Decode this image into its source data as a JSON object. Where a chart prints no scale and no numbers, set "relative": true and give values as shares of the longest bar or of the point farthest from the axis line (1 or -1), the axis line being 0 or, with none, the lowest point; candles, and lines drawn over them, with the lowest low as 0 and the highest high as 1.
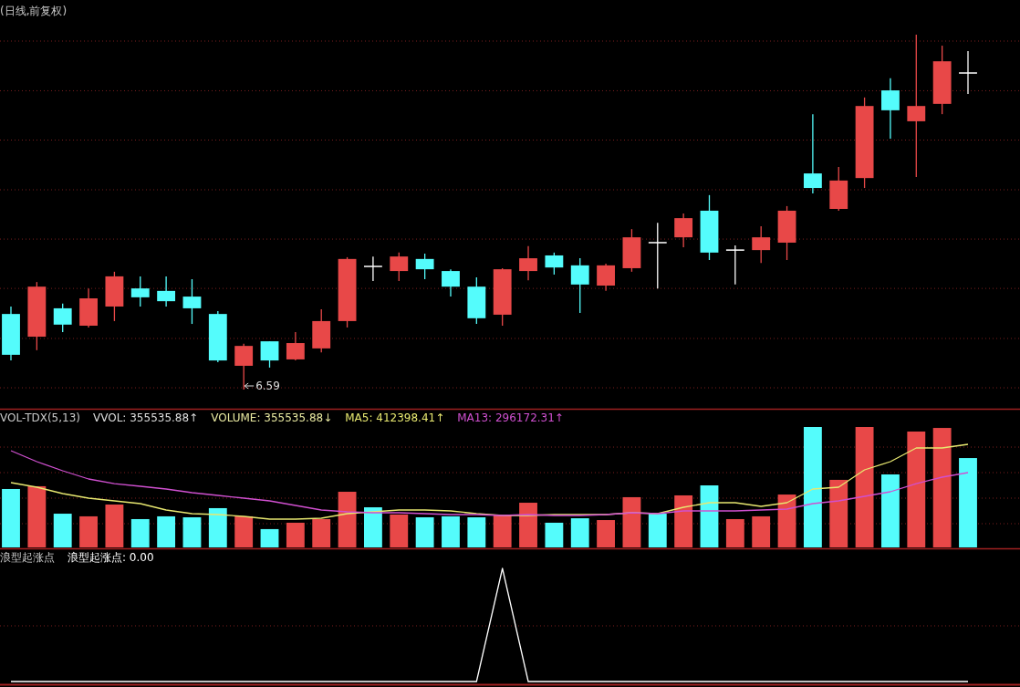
{
  "chart_data": [
    {
      "type": "candlestick",
      "title": "(日线,前复权)",
      "relative": true,
      "categories": [
        null,
        null,
        null,
        null,
        null,
        null,
        null,
        null,
        null,
        null,
        null,
        null,
        null,
        null,
        null,
        null,
        null,
        null,
        null,
        null,
        null,
        null,
        null,
        null,
        null,
        null,
        null,
        null,
        null,
        null,
        null,
        null,
        null,
        null,
        null,
        null,
        null,
        null
      ],
      "ohlc": [
        [
          0.213,
          0.234,
          0.082,
          0.098
        ],
        [
          0.149,
          0.303,
          0.111,
          0.29
        ],
        [
          0.229,
          0.242,
          0.162,
          0.183
        ],
        [
          0.18,
          0.285,
          0.175,
          0.257
        ],
        [
          0.234,
          0.332,
          0.193,
          0.319
        ],
        [
          0.285,
          0.319,
          0.234,
          0.26
        ],
        [
          0.278,
          0.319,
          0.234,
          0.249
        ],
        [
          0.262,
          0.311,
          0.185,
          0.229
        ],
        [
          0.213,
          0.221,
          0.077,
          0.082
        ],
        [
          0.067,
          0.129,
          0,
          0.123
        ],
        [
          0.136,
          0.136,
          0.062,
          0.082
        ],
        [
          0.085,
          0.162,
          0.082,
          0.131
        ],
        [
          0.116,
          0.226,
          0.105,
          0.193
        ],
        [
          0.193,
          0.373,
          0.175,
          0.368
        ],
        [
          0.347,
          0.375,
          0.306,
          0.347
        ],
        [
          0.334,
          0.386,
          0.306,
          0.375
        ],
        [
          0.368,
          0.383,
          0.311,
          0.339
        ],
        [
          0.334,
          0.339,
          0.262,
          0.29
        ],
        [
          0.29,
          0.316,
          0.185,
          0.201
        ],
        [
          0.211,
          0.342,
          0.18,
          0.339
        ],
        [
          0.334,
          0.404,
          0.308,
          0.37
        ],
        [
          0.378,
          0.386,
          0.324,
          0.344
        ],
        [
          0.35,
          0.37,
          0.216,
          0.296
        ],
        [
          0.293,
          0.355,
          0.278,
          0.35
        ],
        [
          0.342,
          0.452,
          0.332,
          0.429
        ],
        [
          0.414,
          0.47,
          0.285,
          0.414
        ],
        [
          0.429,
          0.496,
          0.401,
          0.483
        ],
        [
          0.504,
          0.548,
          0.365,
          0.386
        ],
        [
          0.393,
          0.406,
          0.296,
          0.393
        ],
        [
          0.393,
          0.46,
          0.357,
          0.429
        ],
        [
          0.414,
          0.517,
          0.365,
          0.504
        ],
        [
          0.609,
          0.776,
          0.553,
          0.568
        ],
        [
          0.509,
          0.627,
          0.504,
          0.589
        ],
        [
          0.596,
          0.823,
          0.568,
          0.799
        ],
        [
          0.843,
          0.877,
          0.707,
          0.787
        ],
        [
          0.756,
          1,
          0.599,
          0.799
        ],
        [
          0.805,
          0.969,
          0.776,
          0.925
        ],
        [
          0.892,
          0.954,
          0.833,
          0.892
        ]
      ],
      "colors": [
        "#54fcfc",
        "#e84848",
        "#54fcfc",
        "#e84848",
        "#e84848",
        "#54fcfc",
        "#54fcfc",
        "#54fcfc",
        "#54fcfc",
        "#e84848",
        "#54fcfc",
        "#e84848",
        "#e84848",
        "#e84848",
        "#ffffff",
        "#e84848",
        "#54fcfc",
        "#54fcfc",
        "#54fcfc",
        "#e84848",
        "#e84848",
        "#54fcfc",
        "#54fcfc",
        "#e84848",
        "#e84848",
        "#ffffff",
        "#e84848",
        "#54fcfc",
        "#ffffff",
        "#e84848",
        "#e84848",
        "#54fcfc",
        "#e84848",
        "#e84848",
        "#54fcfc",
        "#e84848",
        "#e84848",
        "#ffffff"
      ],
      "annotations": [
        "6.59"
      ],
      "ref_lines": [
        {
          "axis": "y",
          "value": 0.982,
          "color": "#7a1e1e",
          "line_style": "dotted"
        },
        {
          "axis": "y",
          "value": 0.842,
          "color": "#7a1e1e",
          "line_style": "dotted"
        },
        {
          "axis": "y",
          "value": 0.703,
          "color": "#7a1e1e",
          "line_style": "dotted"
        },
        {
          "axis": "y",
          "value": 0.563,
          "color": "#7a1e1e",
          "line_style": "dotted"
        },
        {
          "axis": "y",
          "value": 0.424,
          "color": "#7a1e1e",
          "line_style": "dotted"
        },
        {
          "axis": "y",
          "value": 0.285,
          "color": "#7a1e1e",
          "line_style": "dotted"
        },
        {
          "axis": "y",
          "value": 0.144,
          "color": "#7a1e1e",
          "line_style": "dotted"
        },
        {
          "axis": "y",
          "value": 0.005,
          "color": "#7a1e1e",
          "line_style": "dotted"
        }
      ]
    },
    {
      "type": "bar",
      "title": "VOL-TDX(5,13)",
      "relative": true,
      "categories": [
        null,
        null,
        null,
        null,
        null,
        null,
        null,
        null,
        null,
        null,
        null,
        null,
        null,
        null,
        null,
        null,
        null,
        null,
        null,
        null,
        null,
        null,
        null,
        null,
        null,
        null,
        null,
        null,
        null,
        null,
        null,
        null,
        null,
        null,
        null,
        null,
        null,
        null
      ],
      "annotations": [
        "VVOL: 355535.88↑",
        "VOLUME: 355535.88↓"
      ],
      "ref_lines": [
        {
          "axis": "y",
          "value": 0.833,
          "color": "#7a1e1e",
          "line_style": "dotted"
        },
        {
          "axis": "y",
          "value": 0.621,
          "color": "#7a1e1e",
          "line_style": "dotted"
        },
        {
          "axis": "y",
          "value": 0.409,
          "color": "#7a1e1e",
          "line_style": "dotted"
        },
        {
          "axis": "y",
          "value": 0.197,
          "color": "#7a1e1e",
          "line_style": "dotted"
        }
      ],
      "values": [
        0.485,
        0.508,
        0.28,
        0.258,
        0.356,
        0.235,
        0.258,
        0.25,
        0.326,
        0.258,
        0.152,
        0.205,
        0.235,
        0.462,
        0.333,
        0.273,
        0.25,
        0.258,
        0.25,
        0.265,
        0.371,
        0.205,
        0.242,
        0.227,
        0.417,
        0.28,
        0.432,
        0.515,
        0.235,
        0.258,
        0.439,
        1,
        0.561,
        1,
        0.606,
        0.962,
        0.992,
        0.742
      ],
      "colors": [
        "#54fcfc",
        "#e84848",
        "#54fcfc",
        "#e84848",
        "#e84848",
        "#54fcfc",
        "#54fcfc",
        "#54fcfc",
        "#54fcfc",
        "#e84848",
        "#54fcfc",
        "#e84848",
        "#e84848",
        "#e84848",
        "#54fcfc",
        "#e84848",
        "#54fcfc",
        "#54fcfc",
        "#54fcfc",
        "#e84848",
        "#e84848",
        "#54fcfc",
        "#54fcfc",
        "#e84848",
        "#e84848",
        "#54fcfc",
        "#e84848",
        "#54fcfc",
        "#e84848",
        "#e84848",
        "#e84848",
        "#54fcfc",
        "#e84848",
        "#e84848",
        "#54fcfc",
        "#e84848",
        "#e84848",
        "#54fcfc"
      ]
    },
    {
      "type": "line",
      "relative": true,
      "categories": [
        null,
        null,
        null,
        null,
        null,
        null,
        null,
        null,
        null,
        null,
        null,
        null,
        null,
        null,
        null,
        null,
        null,
        null,
        null,
        null,
        null,
        null,
        null,
        null,
        null,
        null,
        null,
        null,
        null,
        null,
        null,
        null,
        null,
        null,
        null,
        null,
        null,
        null
      ],
      "series": [
        {
          "name": "MA5: 412398.41↑",
          "color": "#e8e870",
          "values": [
            0.628,
            0.584,
            0.522,
            0.478,
            0.451,
            0.425,
            0.363,
            0.327,
            0.319,
            0.301,
            0.274,
            0.274,
            0.283,
            0.327,
            0.345,
            0.363,
            0.363,
            0.354,
            0.327,
            0.31,
            0.31,
            0.319,
            0.319,
            0.319,
            0.336,
            0.327,
            0.389,
            0.434,
            0.434,
            0.398,
            0.434,
            0.566,
            0.584,
            0.752,
            0.832,
            0.965,
            0.965,
            1
          ]
        },
        {
          "name": "MA13: 296172.31↑",
          "color": "#d050d0",
          "values": [
            0.938,
            0.832,
            0.743,
            0.664,
            0.619,
            0.593,
            0.566,
            0.531,
            0.504,
            0.478,
            0.451,
            0.407,
            0.363,
            0.345,
            0.336,
            0.336,
            0.327,
            0.319,
            0.319,
            0.31,
            0.319,
            0.31,
            0.31,
            0.319,
            0.336,
            0.327,
            0.354,
            0.354,
            0.354,
            0.363,
            0.372,
            0.425,
            0.451,
            0.496,
            0.54,
            0.619,
            0.681,
            0.726
          ]
        }
      ]
    },
    {
      "type": "line",
      "title": "浪型起涨点",
      "relative": true,
      "ref_lines": [
        {
          "axis": "y",
          "value": 0.492,
          "color": "#7a1e1e",
          "line_style": "dotted"
        }
      ],
      "categories": [
        null,
        null,
        null,
        null,
        null,
        null,
        null,
        null,
        null,
        null,
        null,
        null,
        null,
        null,
        null,
        null,
        null,
        null,
        null,
        null,
        null,
        null,
        null,
        null,
        null,
        null,
        null,
        null,
        null,
        null,
        null,
        null,
        null,
        null,
        null,
        null,
        null,
        null
      ],
      "series": [
        {
          "name": "浪型起涨点: 0.00",
          "color": "#ffffff",
          "values": [
            0,
            0,
            0,
            0,
            0,
            0,
            0,
            0,
            0,
            0,
            0,
            0,
            0,
            0,
            0,
            0,
            0,
            0,
            0,
            1,
            0,
            0,
            0,
            0,
            0,
            0,
            0,
            0,
            0,
            0,
            0,
            0,
            0,
            0,
            0,
            0,
            0,
            0
          ]
        }
      ]
    }
  ]
}
